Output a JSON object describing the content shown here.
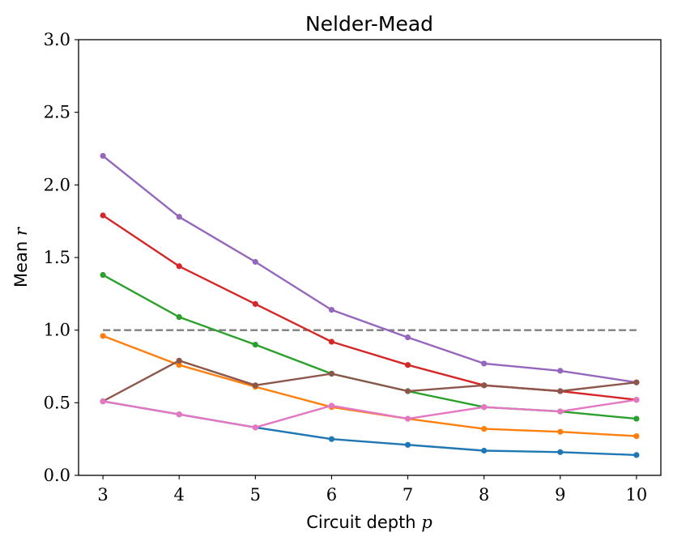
{
  "chart_data": {
    "type": "line",
    "title": "Nelder-Mead",
    "xlabel": "Circuit depth",
    "xlabel_var": "p",
    "ylabel": "Mean",
    "ylabel_var": "r",
    "x": [
      3,
      4,
      5,
      6,
      7,
      8,
      9,
      10
    ],
    "xlim": [
      2.68,
      10.32
    ],
    "ylim": [
      0,
      3.0
    ],
    "xticks": [
      "3",
      "4",
      "5",
      "6",
      "7",
      "8",
      "9",
      "10"
    ],
    "yticks": [
      "0.0",
      "0.5",
      "1.0",
      "1.5",
      "2.0",
      "2.5",
      "3.0"
    ],
    "grid": false,
    "reference_line": {
      "y": 1.0,
      "x_range": [
        3,
        10
      ],
      "style": "dashed",
      "color": "#7f7f7f"
    },
    "series": [
      {
        "color": "#1f77b4",
        "values": [
          0.51,
          0.42,
          0.33,
          0.25,
          0.21,
          0.17,
          0.16,
          0.14
        ]
      },
      {
        "color": "#ff7f0e",
        "values": [
          0.96,
          0.76,
          0.61,
          0.47,
          0.39,
          0.32,
          0.3,
          0.27
        ]
      },
      {
        "color": "#2ca02c",
        "values": [
          1.38,
          1.09,
          0.9,
          0.7,
          0.58,
          0.47,
          0.44,
          0.39
        ]
      },
      {
        "color": "#d62728",
        "values": [
          1.79,
          1.44,
          1.18,
          0.92,
          0.76,
          0.62,
          0.58,
          0.52
        ]
      },
      {
        "color": "#9467bd",
        "values": [
          2.2,
          1.78,
          1.47,
          1.14,
          0.95,
          0.77,
          0.72,
          0.64
        ]
      },
      {
        "color": "#8c564b",
        "values": [
          0.51,
          0.79,
          0.62,
          0.7,
          0.58,
          0.62,
          0.58,
          0.64
        ]
      },
      {
        "color": "#e377c2",
        "values": [
          0.51,
          0.42,
          0.33,
          0.48,
          0.39,
          0.47,
          0.44,
          0.52
        ]
      }
    ]
  }
}
